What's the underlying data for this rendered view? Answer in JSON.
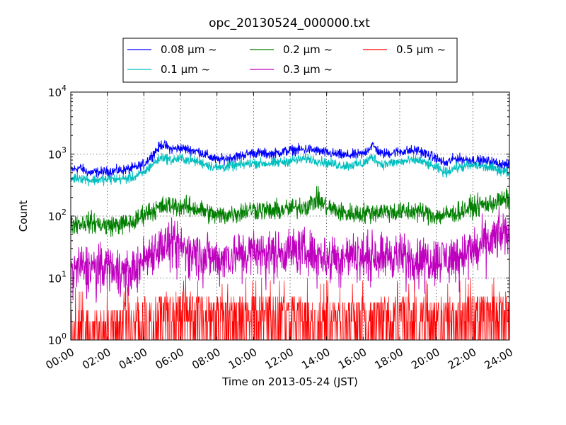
{
  "chart_data": {
    "type": "line",
    "title": "opc_20130524_000000.txt",
    "xlabel": "Time on 2013-05-24 (JST)",
    "ylabel": "Count",
    "x_ticks": [
      "00:00",
      "02:00",
      "04:00",
      "06:00",
      "08:00",
      "10:00",
      "12:00",
      "14:00",
      "16:00",
      "18:00",
      "20:00",
      "22:00",
      "24:00"
    ],
    "xlim_hours": [
      0,
      24
    ],
    "yscale": "log",
    "ylim": [
      1,
      10000
    ],
    "y_ticks": [
      {
        "base": "10",
        "exp": "0"
      },
      {
        "base": "10",
        "exp": "1"
      },
      {
        "base": "10",
        "exp": "2"
      },
      {
        "base": "10",
        "exp": "3"
      },
      {
        "base": "10",
        "exp": "4"
      }
    ],
    "grid": true,
    "legend_position": "above plot, centered",
    "series": [
      {
        "name": "0.08 μm ~",
        "color": "#0000ff",
        "hours": [
          0,
          0.5,
          1,
          2,
          3,
          3.5,
          4,
          4.5,
          5,
          5.5,
          6,
          7,
          8,
          9,
          10,
          11,
          12,
          13,
          14,
          15,
          16,
          16.5,
          17,
          18,
          19,
          20,
          20.5,
          21,
          22,
          23,
          24
        ],
        "values": [
          550,
          600,
          500,
          520,
          560,
          600,
          680,
          1000,
          1450,
          1200,
          1250,
          1100,
          800,
          900,
          1050,
          1000,
          1150,
          1200,
          1050,
          950,
          1000,
          1400,
          1000,
          1100,
          1150,
          850,
          700,
          850,
          800,
          750,
          650
        ]
      },
      {
        "name": "0.1 μm ~",
        "color": "#00bfbf",
        "hours": [
          0,
          0.5,
          1,
          2,
          3,
          3.5,
          4,
          4.5,
          5,
          5.5,
          6,
          7,
          8,
          9,
          10,
          11,
          12,
          13,
          14,
          15,
          16,
          16.5,
          17,
          18,
          19,
          20,
          20.5,
          21,
          22,
          23,
          24
        ],
        "values": [
          400,
          420,
          380,
          390,
          400,
          430,
          500,
          700,
          900,
          800,
          850,
          750,
          600,
          650,
          720,
          700,
          780,
          850,
          720,
          650,
          700,
          900,
          680,
          750,
          800,
          600,
          500,
          600,
          650,
          600,
          500
        ]
      },
      {
        "name": "0.2 μm ~",
        "color": "#007f00",
        "hours": [
          0,
          1,
          2,
          3,
          3.5,
          4,
          5,
          5.5,
          6,
          7,
          8,
          9,
          10,
          11,
          12,
          13,
          13.5,
          14,
          15,
          16,
          17,
          18,
          19,
          20,
          21,
          22,
          23,
          24
        ],
        "values": [
          75,
          80,
          70,
          75,
          80,
          110,
          140,
          150,
          145,
          130,
          100,
          110,
          130,
          120,
          130,
          150,
          190,
          140,
          110,
          110,
          120,
          115,
          120,
          100,
          110,
          140,
          160,
          190
        ]
      },
      {
        "name": "0.3 μm ~",
        "color": "#bf00bf",
        "hours": [
          0,
          1,
          2,
          3,
          3.5,
          4,
          4.5,
          5,
          5.5,
          6,
          7,
          8,
          9,
          10,
          11,
          12,
          13,
          14,
          15,
          16,
          17,
          18,
          19,
          20,
          21,
          22,
          23,
          23.5,
          24
        ],
        "values": [
          14,
          15,
          16,
          13,
          14,
          20,
          28,
          33,
          35,
          32,
          25,
          20,
          24,
          26,
          25,
          28,
          27,
          22,
          23,
          22,
          24,
          22,
          20,
          20,
          22,
          28,
          40,
          50,
          55
        ]
      },
      {
        "name": "0.5 μm ~",
        "color": "#ff0000",
        "hours": [
          0,
          2,
          4,
          6,
          8,
          10,
          12,
          14,
          16,
          18,
          20,
          22,
          24
        ],
        "values": [
          1.5,
          1.5,
          2.5,
          2.8,
          2.5,
          2.5,
          2.5,
          2.2,
          2.2,
          2.5,
          2.2,
          2.5,
          2.8
        ]
      }
    ]
  }
}
